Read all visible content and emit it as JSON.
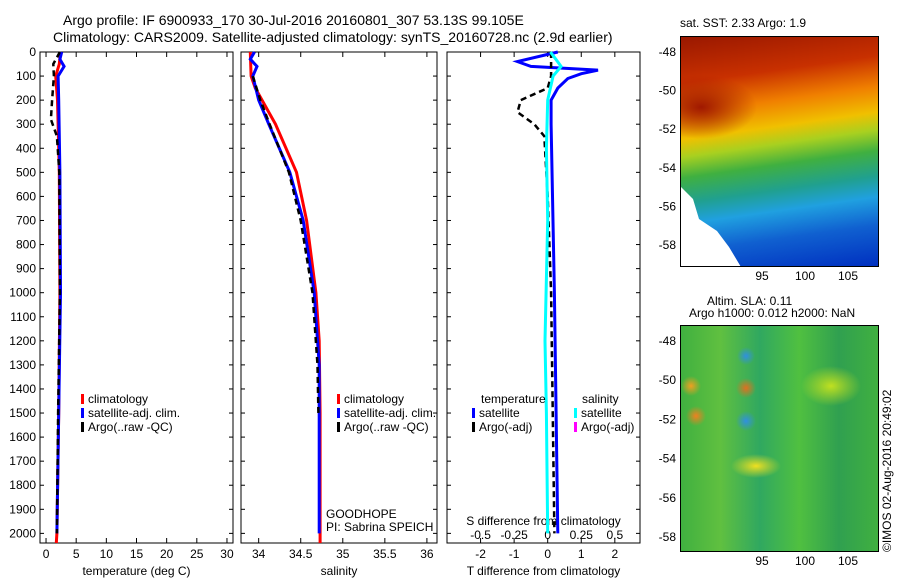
{
  "title_line1": "Argo profile: IF 6900933_170 30-Jul-2016 20160801_307 53.13S 99.105E",
  "title_line2": "Climatology: CARS2009. Satellite-adjusted climatology: synTS_20160728.nc (2.9d earlier)",
  "sst_title": "sat. SST: 2.33 Argo: 1.9",
  "sla_title1": "Altim. SLA: 0.11",
  "sla_title2": "Argo h1000: 0.012 h2000: NaN",
  "watermark": "©IMOS 02-Aug-2016 20:49:02",
  "goodhope": "GOODHOPE",
  "pi": "PI: Sabrina SPEICH",
  "legend1": [
    "climatology",
    "satellite-adj. clim.",
    "Argo(..raw -QC)"
  ],
  "legend3": {
    "temp_head": "temperature",
    "sal_head": "salinity",
    "items": [
      "satellite",
      "Argo(-adj)",
      "satellite",
      "Argo(-adj)"
    ]
  },
  "colors": {
    "clim": "#ff0000",
    "sat": "#0000ff",
    "argo": "#000000",
    "sal_sat": "#00ffff",
    "sal_argo": "#ff00ff"
  },
  "chart_data": [
    {
      "type": "line",
      "xlabel": "temperature (deg C)",
      "ylabel": "",
      "xlim": [
        -1,
        31
      ],
      "ylim": [
        0,
        2040
      ],
      "xticks": [
        0,
        5,
        10,
        15,
        20,
        25,
        30
      ],
      "yticks": [
        0,
        100,
        200,
        300,
        400,
        500,
        600,
        700,
        800,
        900,
        1000,
        1100,
        1200,
        1300,
        1400,
        1500,
        1600,
        1700,
        1800,
        1900,
        2000
      ],
      "series": [
        {
          "name": "climatology",
          "color": "#ff0000",
          "depth": [
            0,
            50,
            100,
            200,
            500,
            1000,
            1500,
            2000,
            2040
          ],
          "values": [
            2.4,
            2.2,
            1.6,
            1.9,
            2.2,
            2.3,
            2.1,
            1.8,
            1.7
          ]
        },
        {
          "name": "satellite-adj. clim.",
          "color": "#0000ff",
          "depth": [
            0,
            30,
            60,
            100,
            200,
            500,
            1000,
            1500,
            2000
          ],
          "values": [
            2.6,
            2.3,
            3.0,
            2.0,
            2.1,
            2.3,
            2.4,
            2.1,
            1.8
          ]
        },
        {
          "name": "Argo(..raw -QC)",
          "color": "#000000",
          "dash": true,
          "depth": [
            0,
            50,
            100,
            200,
            280,
            350,
            500,
            1000,
            1500,
            2000
          ],
          "values": [
            2.3,
            1.2,
            1.3,
            1.0,
            0.8,
            1.8,
            2.2,
            2.3,
            2.0,
            1.8
          ]
        }
      ]
    },
    {
      "type": "line",
      "xlabel": "salinity",
      "xlim": [
        33.79,
        36.12
      ],
      "ylim": [
        0,
        2040
      ],
      "xticks": [
        34,
        34.5,
        35,
        35.5,
        36
      ],
      "series": [
        {
          "name": "climatology",
          "color": "#ff0000",
          "depth": [
            0,
            100,
            150,
            300,
            500,
            700,
            1000,
            1200,
            1500,
            2040
          ],
          "values": [
            33.9,
            33.91,
            33.96,
            34.2,
            34.45,
            34.57,
            34.68,
            34.72,
            34.73,
            34.73
          ]
        },
        {
          "name": "satellite-adj. clim.",
          "color": "#0000ff",
          "depth": [
            0,
            30,
            60,
            100,
            200,
            300,
            500,
            700,
            1000,
            1300,
            2000
          ],
          "values": [
            33.95,
            33.9,
            33.98,
            33.93,
            34.0,
            34.12,
            34.37,
            34.53,
            34.66,
            34.72,
            34.72
          ]
        },
        {
          "name": "Argo(..raw -QC)",
          "color": "#000000",
          "dash": true,
          "depth": [
            100,
            200,
            300,
            500,
            700,
            1000,
            1300,
            1500
          ],
          "values": [
            33.93,
            34.02,
            34.13,
            34.36,
            34.5,
            34.64,
            34.7,
            34.71
          ]
        }
      ]
    },
    {
      "type": "line",
      "xlabel": "T difference from climatology",
      "x2label": "S difference from climatology",
      "xlim": [
        -3,
        2.75
      ],
      "ylim": [
        0,
        2040
      ],
      "xticks": [
        -2,
        -1,
        0,
        1,
        2
      ],
      "x2ticks": [
        "-0.5",
        "-0.25",
        "0",
        "0.25",
        "0.5"
      ],
      "x2vals": [
        -0.5,
        -0.25,
        0,
        0.25,
        0.5
      ],
      "x2scale": 4,
      "series": [
        {
          "name": "T satellite",
          "color": "#0000ff",
          "depth": [
            0,
            40,
            60,
            75,
            90,
            110,
            150,
            200,
            300,
            1000,
            1500,
            2000
          ],
          "values": [
            0.3,
            -0.9,
            -0.5,
            1.5,
            1.0,
            0.6,
            0.3,
            0.1,
            0.1,
            0.2,
            0.25,
            0.3
          ]
        },
        {
          "name": "T Argo(-adj)",
          "color": "#000000",
          "dash": true,
          "depth": [
            0,
            100,
            150,
            200,
            250,
            300,
            350,
            600,
            1000,
            2000
          ],
          "values": [
            0.1,
            0.1,
            0.0,
            -0.8,
            -0.9,
            -0.4,
            -0.1,
            0.0,
            0.1,
            0.2
          ]
        },
        {
          "name": "S satellite",
          "color": "#00ffff",
          "scale": 4,
          "depth": [
            0,
            30,
            60,
            100,
            200,
            400,
            700,
            1200,
            1500,
            2000
          ],
          "values": [
            0.02,
            0.06,
            0.1,
            0.04,
            0.0,
            -0.01,
            0.0,
            -0.02,
            -0.01,
            0.0
          ]
        }
      ]
    }
  ],
  "maps": {
    "lon_ticks": [
      95,
      100,
      105
    ],
    "lat_ticks": [
      -48,
      -50,
      -52,
      -54,
      -56,
      -58
    ]
  }
}
